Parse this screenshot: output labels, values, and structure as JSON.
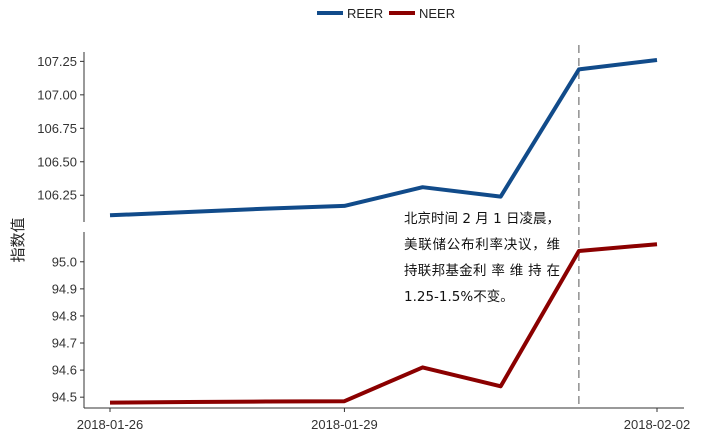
{
  "chart_data": {
    "type": "line",
    "ylabel": "指数值",
    "x": [
      "2018-01-26",
      "2018-01-27",
      "2018-01-28",
      "2018-01-29",
      "2018-01-30",
      "2018-01-31",
      "2018-02-01",
      "2018-02-02"
    ],
    "xtick_labels": [
      "2018-01-26",
      "2018-01-29",
      "2018-02-02"
    ],
    "series": [
      {
        "name": "REER",
        "color": "#114B8A",
        "values": [
          106.1,
          106.125,
          106.15,
          106.17,
          106.31,
          106.24,
          107.19,
          107.26
        ]
      },
      {
        "name": "NEER",
        "color": "#8B0000",
        "values": [
          94.48,
          94.482,
          94.484,
          94.485,
          94.61,
          94.54,
          95.04,
          95.065
        ]
      }
    ],
    "panels": [
      {
        "series": "REER",
        "ylim": [
          106.05,
          107.32
        ],
        "yticks": [
          "106.25",
          "106.50",
          "106.75",
          "107.00",
          "107.25"
        ]
      },
      {
        "series": "NEER",
        "ylim": [
          94.46,
          95.11
        ],
        "yticks": [
          "94.5",
          "94.6",
          "94.7",
          "94.8",
          "94.9",
          "95.0"
        ]
      }
    ],
    "vline": {
      "x": "2018-02-01",
      "style": "dashed",
      "color": "#888888"
    },
    "legend": {
      "position": "top",
      "entries": [
        "REER",
        "NEER"
      ]
    },
    "annotation": "北京时间 2 月 1 日凌晨，美联储公布利率决议，维持联邦基金利 率 维 持 在 1.25-1.5%不变。"
  }
}
